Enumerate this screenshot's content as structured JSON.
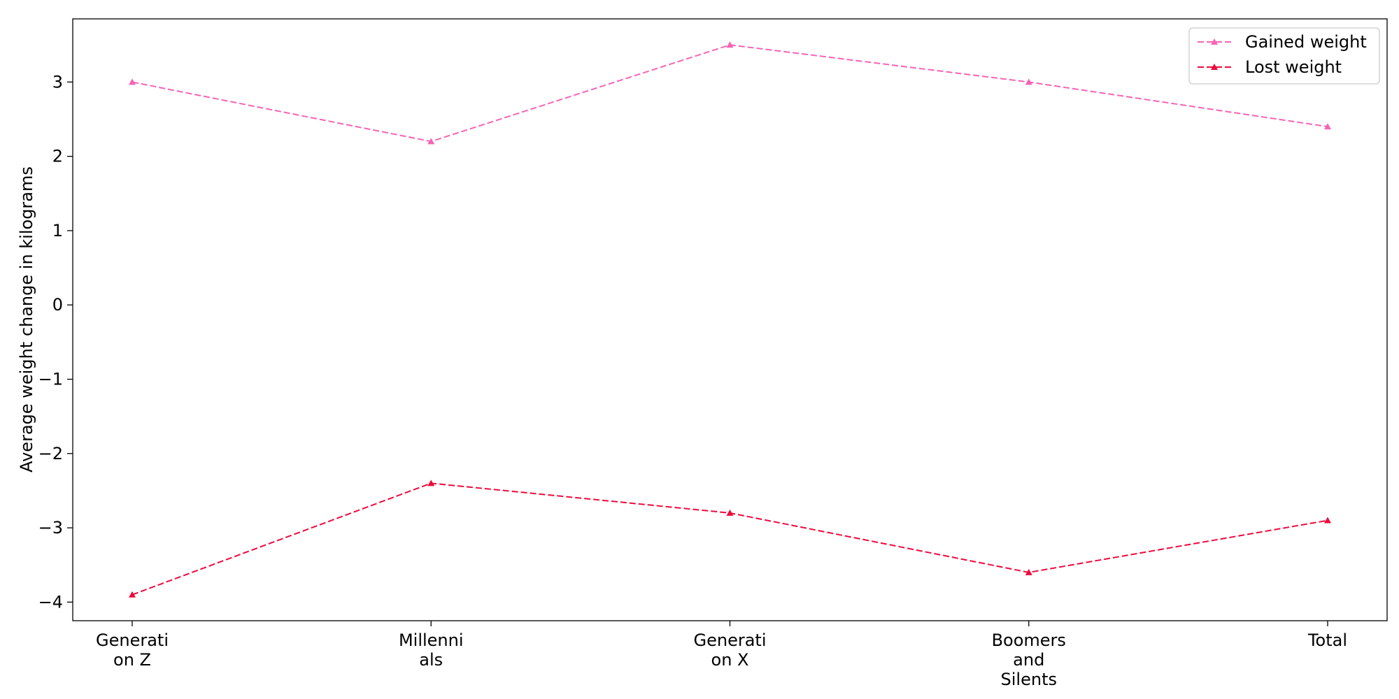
{
  "chart_data": {
    "type": "line",
    "title": "",
    "xlabel": "",
    "ylabel": "Average weight change in kilograms",
    "categories": [
      [
        "Generati",
        "on Z"
      ],
      [
        "Millenni",
        "als"
      ],
      [
        "Generati",
        "on X"
      ],
      [
        "Boomers",
        "and",
        "Silents"
      ],
      [
        "Total"
      ]
    ],
    "ylim": [
      -4.25,
      3.85
    ],
    "yticks": [
      3,
      2,
      1,
      0,
      -1,
      -2,
      -3,
      -4
    ],
    "ytick_labels": [
      "3",
      "2",
      "1",
      "0",
      "−1",
      "−2",
      "−3",
      "−4"
    ],
    "grid": false,
    "legend_position": "top-right",
    "series": [
      {
        "name": "Gained weight",
        "values": [
          3.0,
          2.2,
          3.5,
          3.0,
          2.4
        ],
        "color": "#f564b4",
        "line_style": "dashed",
        "marker": "triangle"
      },
      {
        "name": "Lost weight",
        "values": [
          -3.9,
          -2.4,
          -2.8,
          -3.6,
          -2.9
        ],
        "color": "#ee0a3c",
        "line_style": "dashed",
        "marker": "triangle"
      }
    ]
  }
}
